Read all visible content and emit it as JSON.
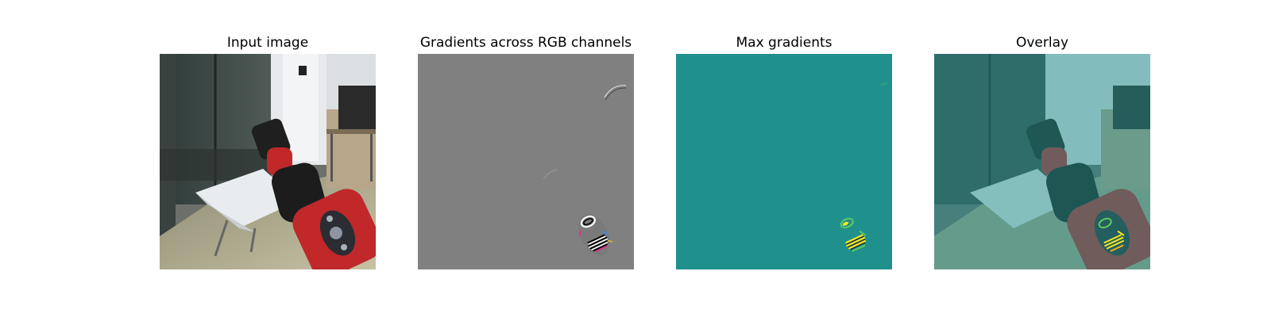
{
  "panels": [
    {
      "title": "Input image"
    },
    {
      "title": "Gradients across RGB channels"
    },
    {
      "title": "Max gradients"
    },
    {
      "title": "Overlay"
    }
  ],
  "colors": {
    "gradient_gray": "#808080",
    "max_gradient_teal": "#20908c",
    "highlight_yellow": "#f5e61e",
    "highlight_green": "#5ec962",
    "robot_red": "#c0282a"
  }
}
